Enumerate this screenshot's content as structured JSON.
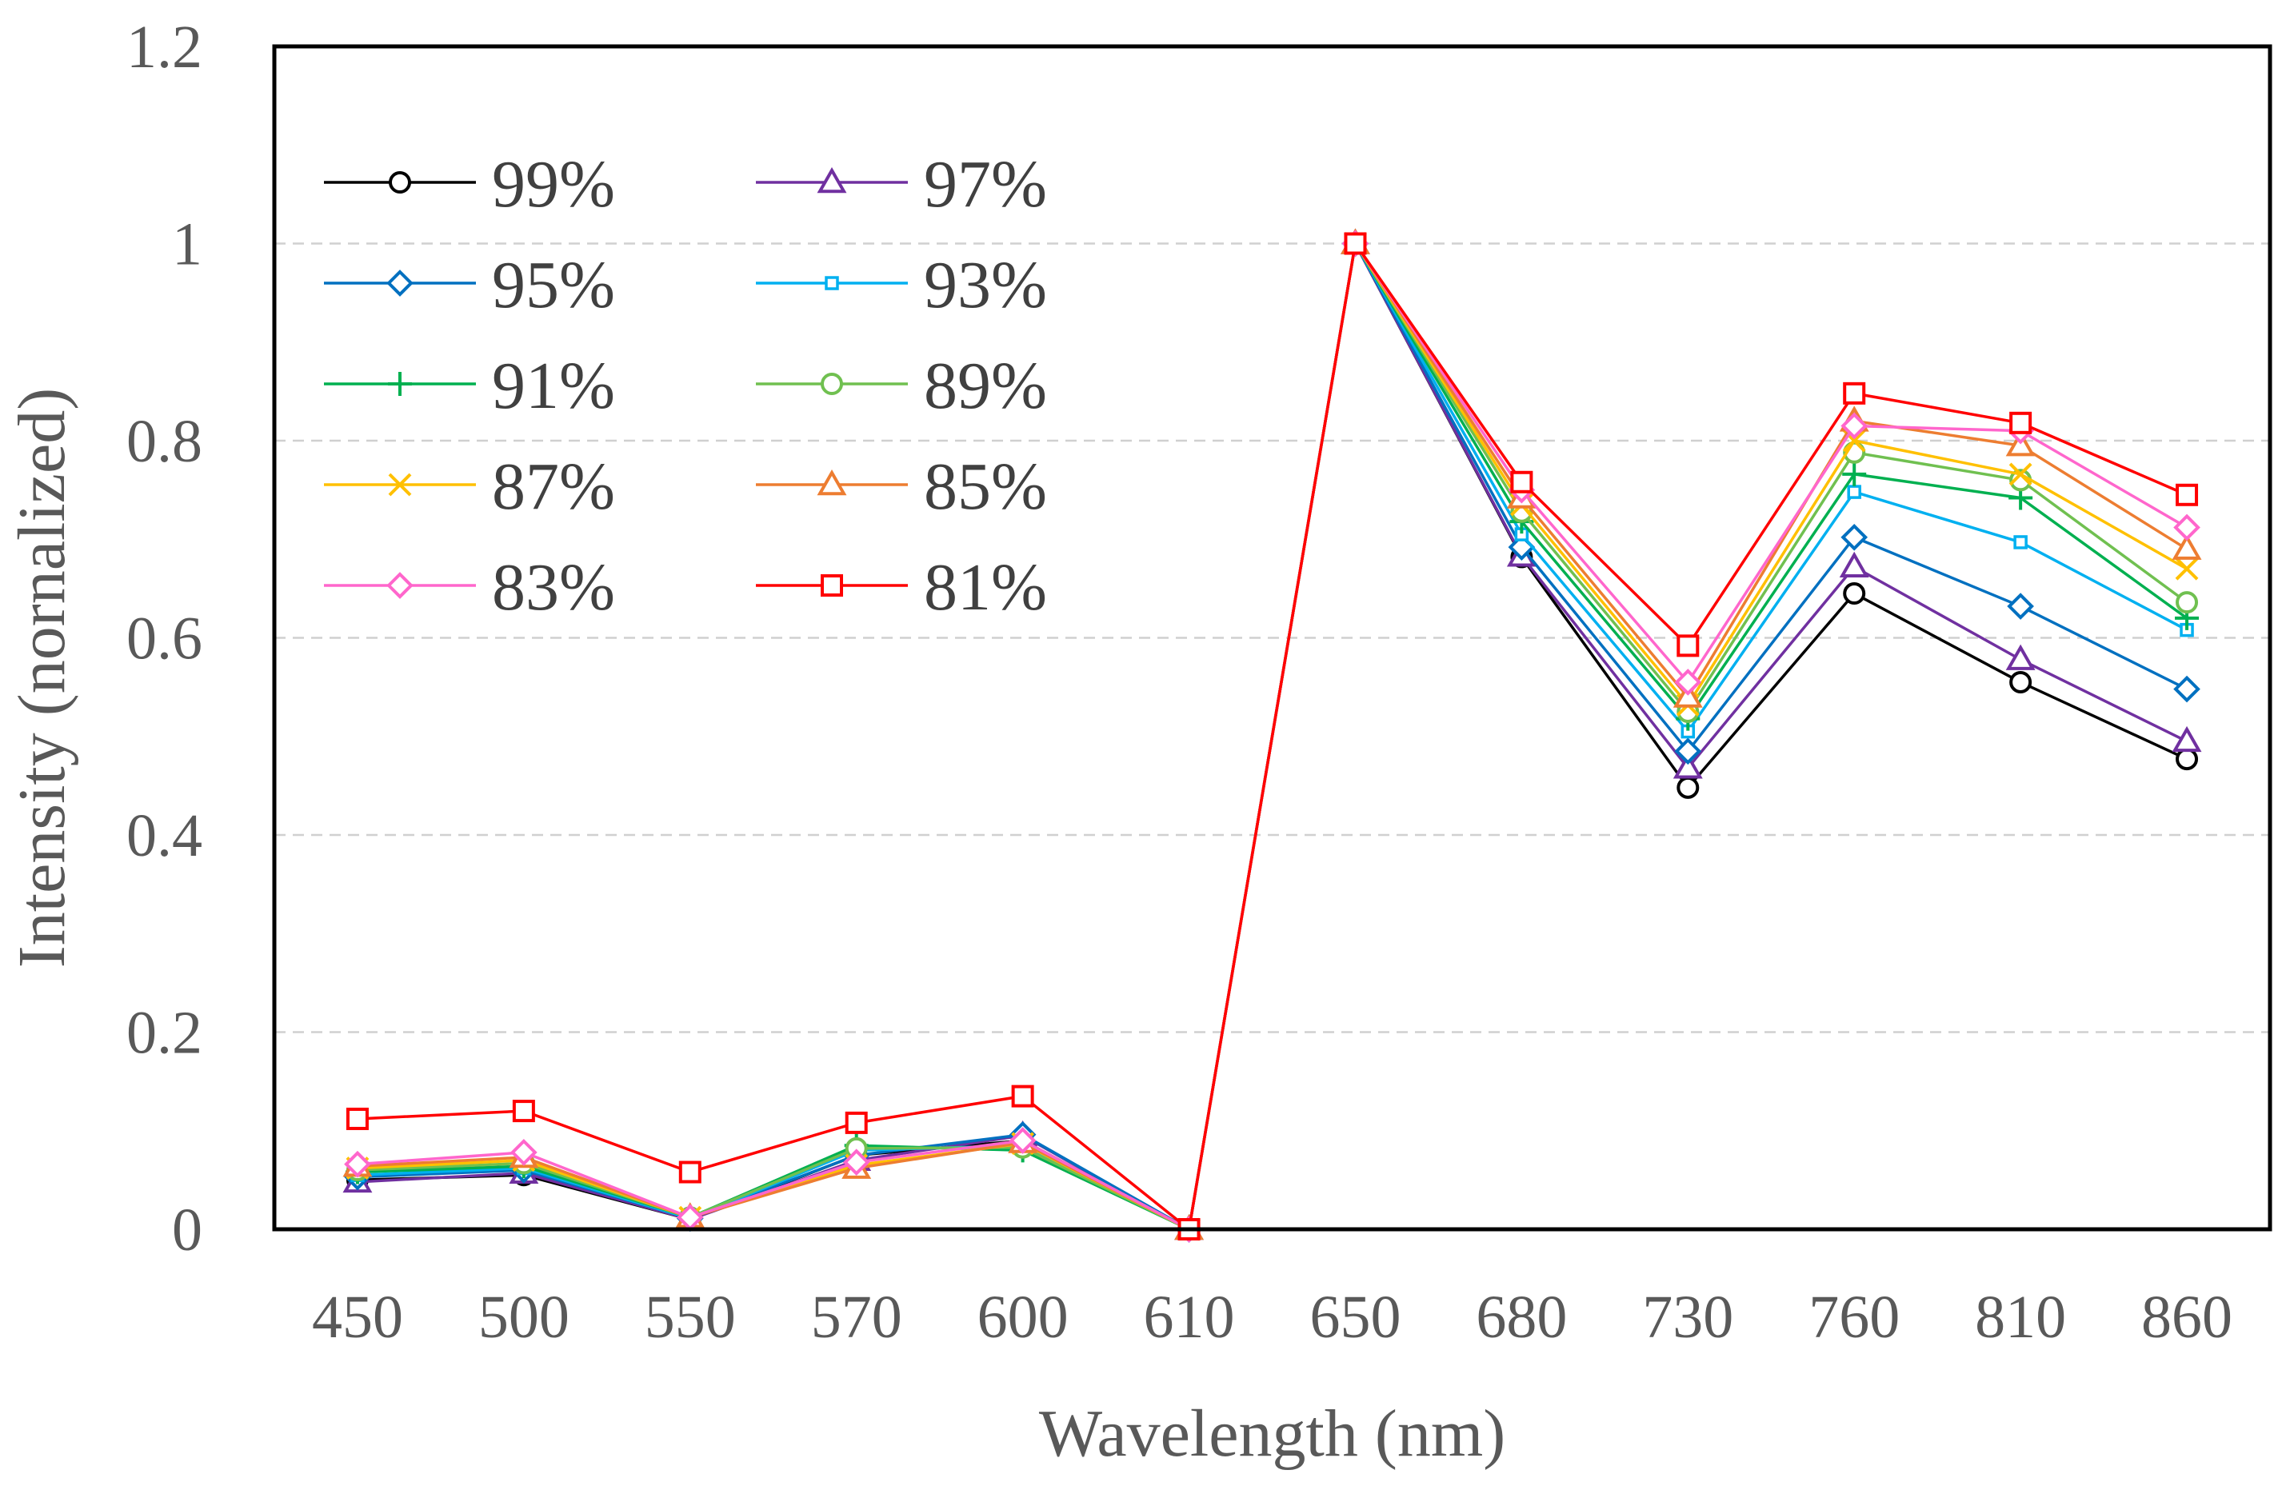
{
  "chart_data": {
    "type": "line",
    "title": "",
    "xlabel": "Wavelength (nm)",
    "ylabel": "Intensity (nornalized)",
    "categories": [
      "450",
      "500",
      "550",
      "570",
      "600",
      "610",
      "650",
      "680",
      "730",
      "760",
      "810",
      "860"
    ],
    "ylim": [
      0,
      1.2
    ],
    "yticks": [
      "0",
      "0.2",
      "0.4",
      "0.6",
      "0.8",
      "1",
      "1.2"
    ],
    "grid": "horizontal dashed",
    "legend_position": "top-left",
    "series": [
      {
        "name": "99%",
        "color": "#000000",
        "marker": "circle",
        "values": [
          0.05,
          0.055,
          0.01,
          0.075,
          0.09,
          0,
          1.0,
          0.682,
          0.448,
          0.645,
          0.555,
          0.477
        ]
      },
      {
        "name": "97%",
        "color": "#7030A0",
        "marker": "triangle",
        "values": [
          0.048,
          0.057,
          0.01,
          0.07,
          0.095,
          0,
          1.0,
          0.683,
          0.468,
          0.672,
          0.578,
          0.495
        ]
      },
      {
        "name": "95%",
        "color": "#0070C0",
        "marker": "diamond",
        "values": [
          0.053,
          0.06,
          0.011,
          0.075,
          0.096,
          0,
          1.0,
          0.692,
          0.485,
          0.702,
          0.632,
          0.548
        ]
      },
      {
        "name": "93%",
        "color": "#00B0F0",
        "marker": "small-square",
        "values": [
          0.055,
          0.062,
          0.011,
          0.08,
          0.085,
          0,
          1.0,
          0.705,
          0.505,
          0.748,
          0.697,
          0.608
        ]
      },
      {
        "name": "91%",
        "color": "#00B050",
        "marker": "plus",
        "values": [
          0.058,
          0.064,
          0.012,
          0.085,
          0.08,
          0,
          1.0,
          0.718,
          0.518,
          0.766,
          0.742,
          0.62
        ]
      },
      {
        "name": "89%",
        "color": "#70C050",
        "marker": "circle",
        "values": [
          0.06,
          0.067,
          0.012,
          0.082,
          0.083,
          0,
          1.0,
          0.728,
          0.525,
          0.788,
          0.76,
          0.636
        ]
      },
      {
        "name": "87%",
        "color": "#FFC000",
        "marker": "x",
        "values": [
          0.062,
          0.07,
          0.012,
          0.065,
          0.087,
          0,
          1.0,
          0.735,
          0.532,
          0.8,
          0.766,
          0.67
        ]
      },
      {
        "name": "85%",
        "color": "#ED7D31",
        "marker": "triangle",
        "values": [
          0.064,
          0.073,
          0.012,
          0.062,
          0.088,
          0,
          1.0,
          0.742,
          0.54,
          0.82,
          0.795,
          0.69
        ]
      },
      {
        "name": "83%",
        "color": "#FF66CC",
        "marker": "diamond",
        "values": [
          0.066,
          0.078,
          0.012,
          0.068,
          0.09,
          0,
          1.0,
          0.75,
          0.555,
          0.815,
          0.81,
          0.712
        ]
      },
      {
        "name": "81%",
        "color": "#FF0000",
        "marker": "square",
        "values": [
          0.112,
          0.12,
          0.058,
          0.108,
          0.135,
          0,
          1.0,
          0.758,
          0.592,
          0.848,
          0.818,
          0.745
        ]
      }
    ]
  }
}
